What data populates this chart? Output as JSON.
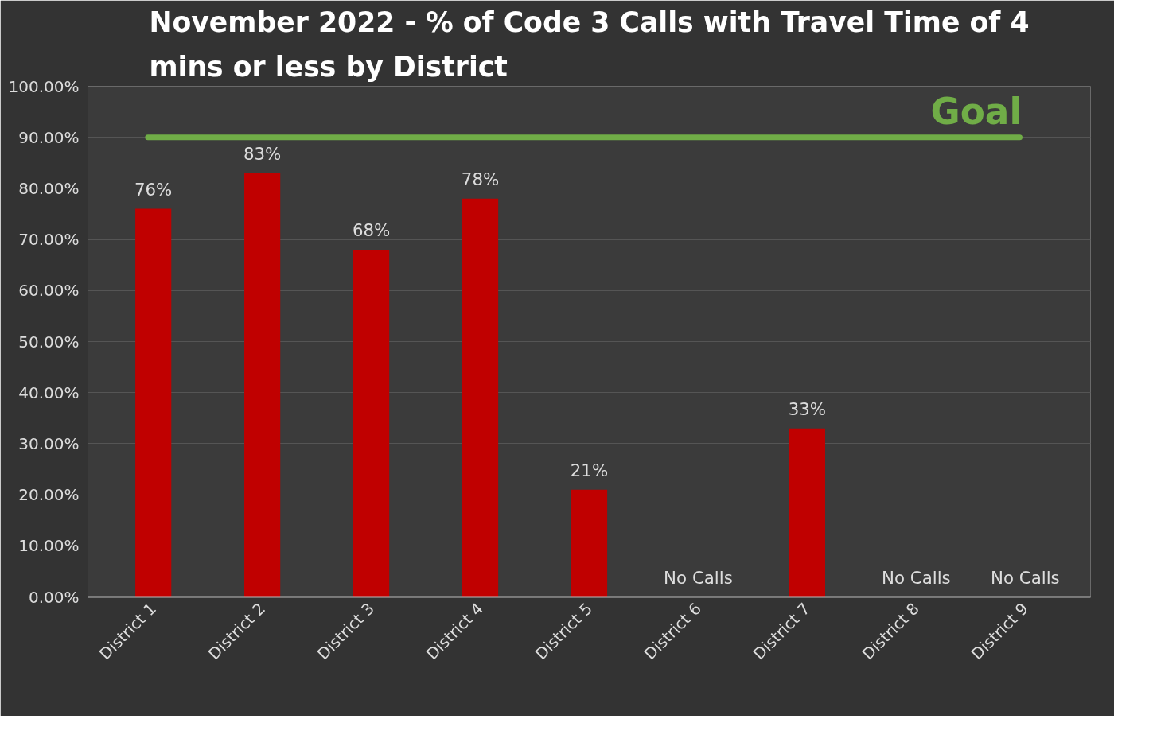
{
  "chart_data": {
    "type": "bar",
    "title": "November 2022 - % of Code 3 Calls with Travel Time of 4 mins or less by District",
    "categories": [
      "District 1",
      "District 2",
      "District 3",
      "District 4",
      "District 5",
      "District 6",
      "District 7",
      "District 8",
      "District 9"
    ],
    "values": [
      76,
      83,
      68,
      78,
      21,
      null,
      33,
      null,
      null
    ],
    "value_labels": [
      "76%",
      "83%",
      "68%",
      "78%",
      "21%",
      "No Calls",
      "33%",
      "No Calls",
      "No Calls"
    ],
    "color": "#c00000",
    "ylim": [
      0,
      100
    ],
    "yticks": [
      {
        "value": 0,
        "label": "0.00%"
      },
      {
        "value": 10,
        "label": "10.00%"
      },
      {
        "value": 20,
        "label": "20.00%"
      },
      {
        "value": 30,
        "label": "30.00%"
      },
      {
        "value": 40,
        "label": "40.00%"
      },
      {
        "value": 50,
        "label": "50.00%"
      },
      {
        "value": 60,
        "label": "60.00%"
      },
      {
        "value": 70,
        "label": "70.00%"
      },
      {
        "value": 80,
        "label": "80.00%"
      },
      {
        "value": 90,
        "label": "90.00%"
      },
      {
        "value": 100,
        "label": "100.00%"
      }
    ],
    "grid": "y",
    "ref_lines": [
      {
        "axis": "y",
        "value": 90,
        "label": "Goal",
        "color": "#70ad47"
      }
    ]
  }
}
